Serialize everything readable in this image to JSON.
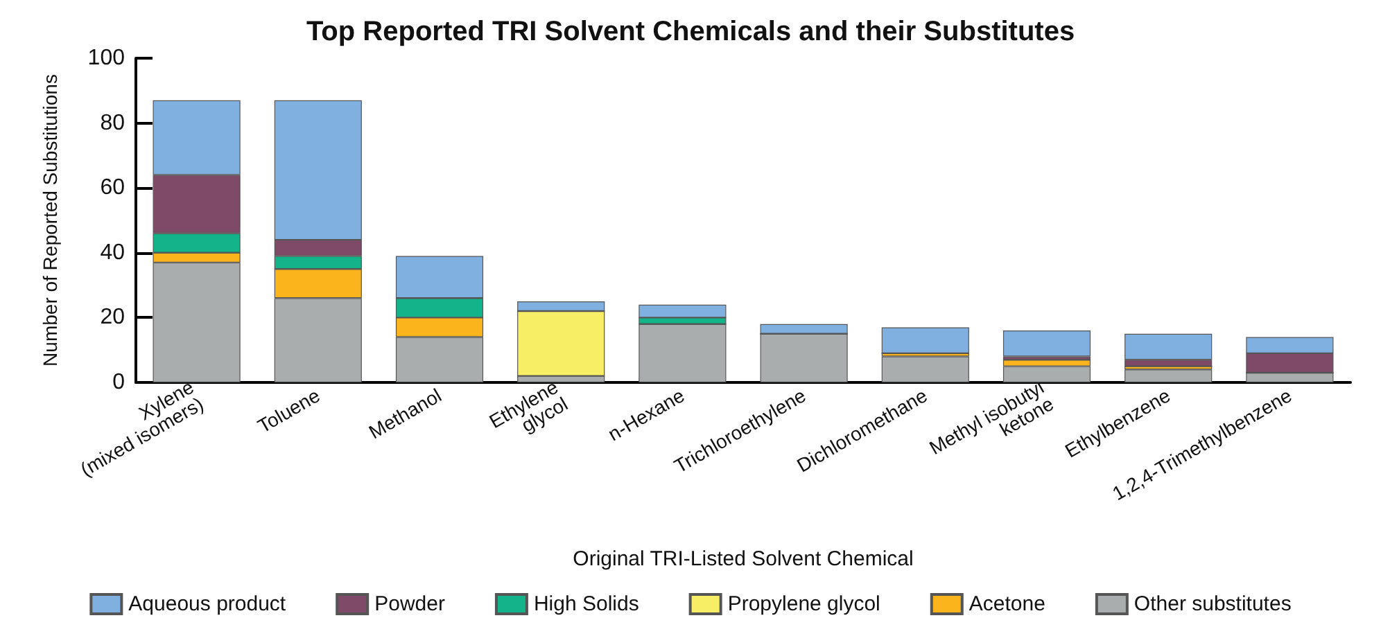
{
  "chart_data": {
    "type": "bar",
    "title": "Top Reported TRI Solvent Chemicals and their Substitutes",
    "xlabel": "Original TRI-Listed Solvent Chemical",
    "ylabel": "Number of Reported Substitutions",
    "categories": [
      "Xylene\n(mixed isomers)",
      "Toluene",
      "Methanol",
      "Ethylene\nglycol",
      "n-Hexane",
      "Trichloroethylene",
      "Dichloromethane",
      "Methyl isobutyl\nketone",
      "Ethylbenzene",
      "1,2,4-Trimethylbenzene"
    ],
    "stacked": true,
    "ylim": [
      0,
      100
    ],
    "yticks": [
      0,
      20,
      40,
      60,
      80,
      100
    ],
    "grid": false,
    "legend": "bottom",
    "series": [
      {
        "name": "Other substitutes",
        "color": "#a9adae",
        "values": [
          37,
          26,
          14,
          2,
          18,
          15,
          8,
          5,
          4,
          3
        ]
      },
      {
        "name": "Acetone",
        "color": "#fbb41c",
        "values": [
          3,
          9,
          6,
          0,
          0,
          0,
          1,
          2,
          1,
          0
        ]
      },
      {
        "name": "Propylene glycol",
        "color": "#f7ee66",
        "values": [
          0,
          0,
          0,
          20,
          0,
          0,
          0,
          0,
          0,
          0
        ]
      },
      {
        "name": "High Solids",
        "color": "#13b48a",
        "values": [
          6,
          4,
          6,
          0,
          2,
          0,
          0,
          0,
          0,
          0
        ]
      },
      {
        "name": "Powder",
        "color": "#7f4a68",
        "values": [
          18,
          5,
          0,
          0,
          0,
          0,
          0,
          1,
          2,
          6
        ]
      },
      {
        "name": "Aqueous product",
        "color": "#7fb0e0",
        "values": [
          23,
          43,
          13,
          3,
          4,
          3,
          8,
          8,
          8,
          5
        ]
      }
    ]
  }
}
